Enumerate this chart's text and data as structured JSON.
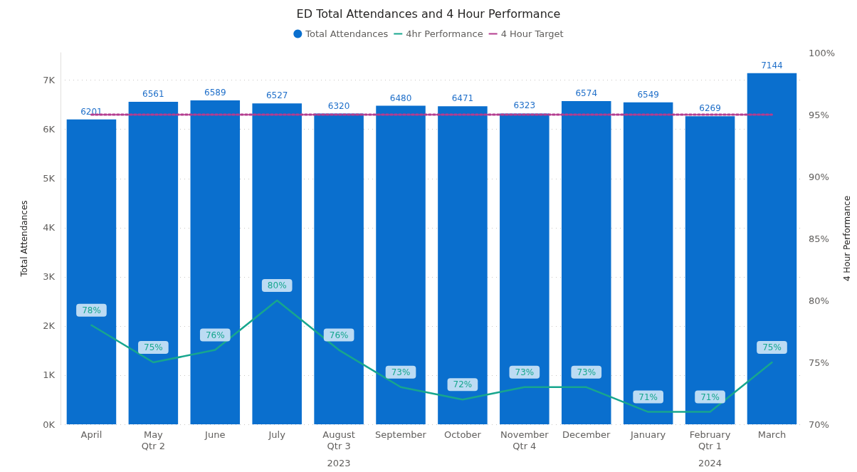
{
  "chart_data": {
    "type": "bar",
    "title": "ED Total Attendances and 4 Hour Performance",
    "ylabel": "Total Attendances",
    "y2label": "4 Hour Performance",
    "categories": [
      "April",
      "May",
      "June",
      "July",
      "August",
      "September",
      "October",
      "November",
      "December",
      "January",
      "February",
      "March"
    ],
    "series": [
      {
        "name": "Total Attendances",
        "color": "#0a6fce",
        "values": [
          6201,
          6561,
          6589,
          6527,
          6320,
          6480,
          6471,
          6323,
          6574,
          6549,
          6269,
          7144
        ],
        "value_labels": [
          "6201",
          "6561",
          "6589",
          "6527",
          "6320",
          "6480",
          "6471",
          "6323",
          "6574",
          "6549",
          "6269",
          "7144"
        ]
      },
      {
        "name": "4hr Performance",
        "type": "line",
        "axis": "y2",
        "color": "#17a68e",
        "values": [
          78,
          75,
          76,
          80,
          76,
          73,
          72,
          73,
          73,
          71,
          71,
          75
        ],
        "value_labels": [
          "78%",
          "75%",
          "76%",
          "80%",
          "76%",
          "73%",
          "72%",
          "73%",
          "73%",
          "71%",
          "71%",
          "75%"
        ]
      },
      {
        "name": "4 Hour Target",
        "type": "line",
        "axis": "y2",
        "color": "#b43c8f",
        "line_style": "dotted",
        "values": [
          95,
          95,
          95,
          95,
          95,
          95,
          95,
          95,
          95,
          95,
          95,
          95
        ]
      }
    ],
    "ylim": [
      0,
      7560
    ],
    "yticks": [
      {
        "value": 0,
        "label": "0K"
      },
      {
        "value": 1000,
        "label": "1K"
      },
      {
        "value": 2000,
        "label": "2K"
      },
      {
        "value": 3000,
        "label": "3K"
      },
      {
        "value": 4000,
        "label": "4K"
      },
      {
        "value": 5000,
        "label": "5K"
      },
      {
        "value": 6000,
        "label": "6K"
      },
      {
        "value": 7000,
        "label": "7K"
      }
    ],
    "y2lim": [
      70,
      100
    ],
    "y2ticks": [
      {
        "value": 70,
        "label": "70%"
      },
      {
        "value": 75,
        "label": "75%"
      },
      {
        "value": 80,
        "label": "80%"
      },
      {
        "value": 85,
        "label": "85%"
      },
      {
        "value": 90,
        "label": "90%"
      },
      {
        "value": 95,
        "label": "95%"
      },
      {
        "value": 100,
        "label": "100%"
      }
    ],
    "annotations": [
      "Qtr 2",
      "Qtr 3",
      "Qtr 4",
      "Qtr 1",
      "2023",
      "2024"
    ],
    "grid": "y",
    "legend": "top",
    "marker": "none"
  }
}
